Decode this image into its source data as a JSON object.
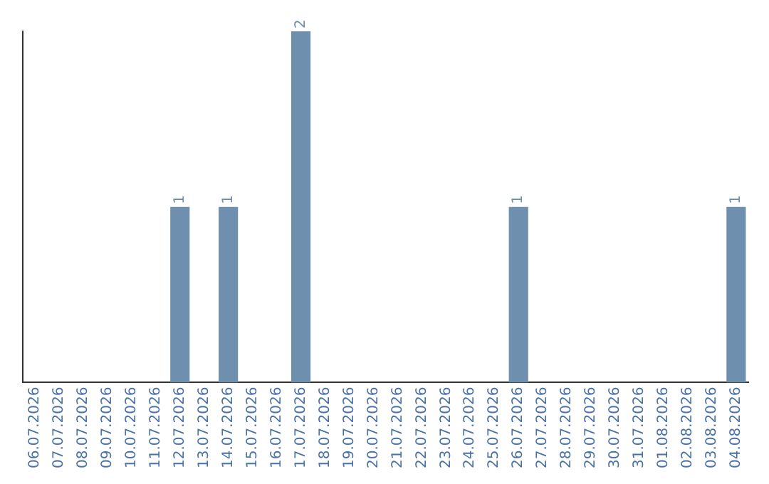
{
  "chart_data": {
    "type": "bar",
    "categories": [
      "06.07.2026",
      "07.07.2026",
      "08.07.2026",
      "09.07.2026",
      "10.07.2026",
      "11.07.2026",
      "12.07.2026",
      "13.07.2026",
      "14.07.2026",
      "15.07.2026",
      "16.07.2026",
      "17.07.2026",
      "18.07.2026",
      "19.07.2026",
      "20.07.2026",
      "21.07.2026",
      "22.07.2026",
      "23.07.2026",
      "24.07.2026",
      "25.07.2026",
      "26.07.2026",
      "27.07.2026",
      "28.07.2026",
      "29.07.2026",
      "30.07.2026",
      "31.07.2026",
      "01.08.2026",
      "02.08.2026",
      "03.08.2026",
      "04.08.2026"
    ],
    "values": [
      0,
      0,
      0,
      0,
      0,
      0,
      1,
      0,
      1,
      0,
      0,
      2,
      0,
      0,
      0,
      0,
      0,
      0,
      0,
      0,
      1,
      0,
      0,
      0,
      0,
      0,
      0,
      0,
      0,
      1
    ],
    "value_labels": [
      null,
      null,
      null,
      null,
      null,
      null,
      "1",
      null,
      "1",
      null,
      null,
      "2",
      null,
      null,
      null,
      null,
      null,
      null,
      null,
      null,
      "1",
      null,
      null,
      null,
      null,
      null,
      null,
      null,
      null,
      "1"
    ],
    "color": "#6e8fad",
    "ylim": [
      0,
      2
    ],
    "grid": false,
    "legend": false,
    "tick_labels": "x"
  }
}
